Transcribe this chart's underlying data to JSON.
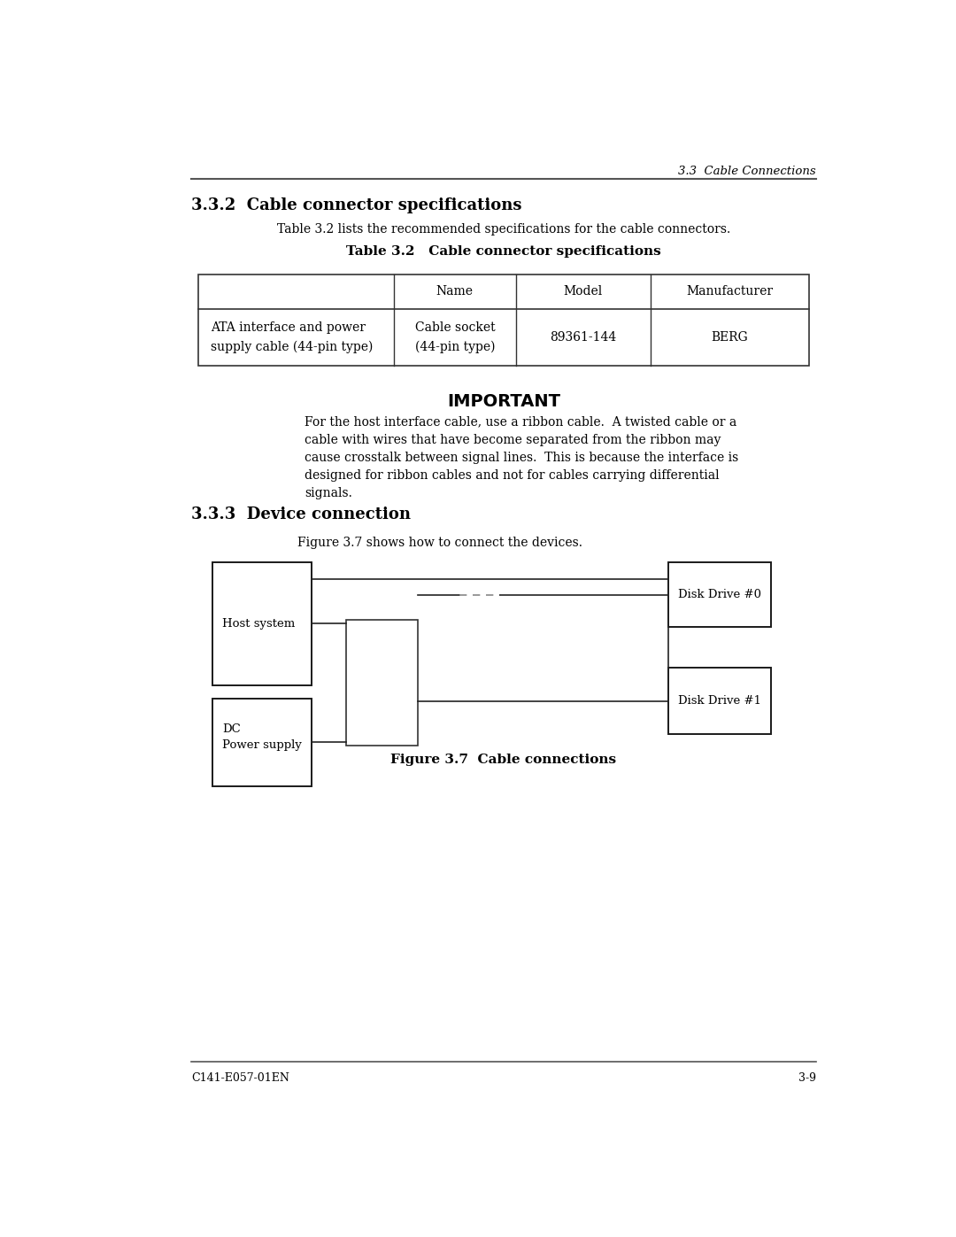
{
  "page_header": "3.3  Cable Connections",
  "section_title": "3.3.2  Cable connector specifications",
  "table_intro": "Table 3.2 lists the recommended specifications for the cable connectors.",
  "table_title": "Table 3.2   Cable connector specifications",
  "table_headers": [
    "",
    "Name",
    "Model",
    "Manufacturer"
  ],
  "table_row": [
    "ATA interface and power\nsupply cable (44-pin type)",
    "Cable socket\n(44-pin type)",
    "89361-144",
    "BERG"
  ],
  "important_title": "IMPORTANT",
  "important_text": "For the host interface cable, use a ribbon cable.  A twisted cable or a\ncable with wires that have become separated from the ribbon may\ncause crosstalk between signal lines.  This is because the interface is\ndesigned for ribbon cables and not for cables carrying differential\nsignals.",
  "section2_title": "3.3.3  Device connection",
  "figure_intro": "Figure 3.7 shows how to connect the devices.",
  "figure_caption": "Figure 3.7  Cable connections",
  "footer_left": "C141-E057-01EN",
  "footer_right": "3-9",
  "bg_color": "#ffffff",
  "text_color": "#000000"
}
